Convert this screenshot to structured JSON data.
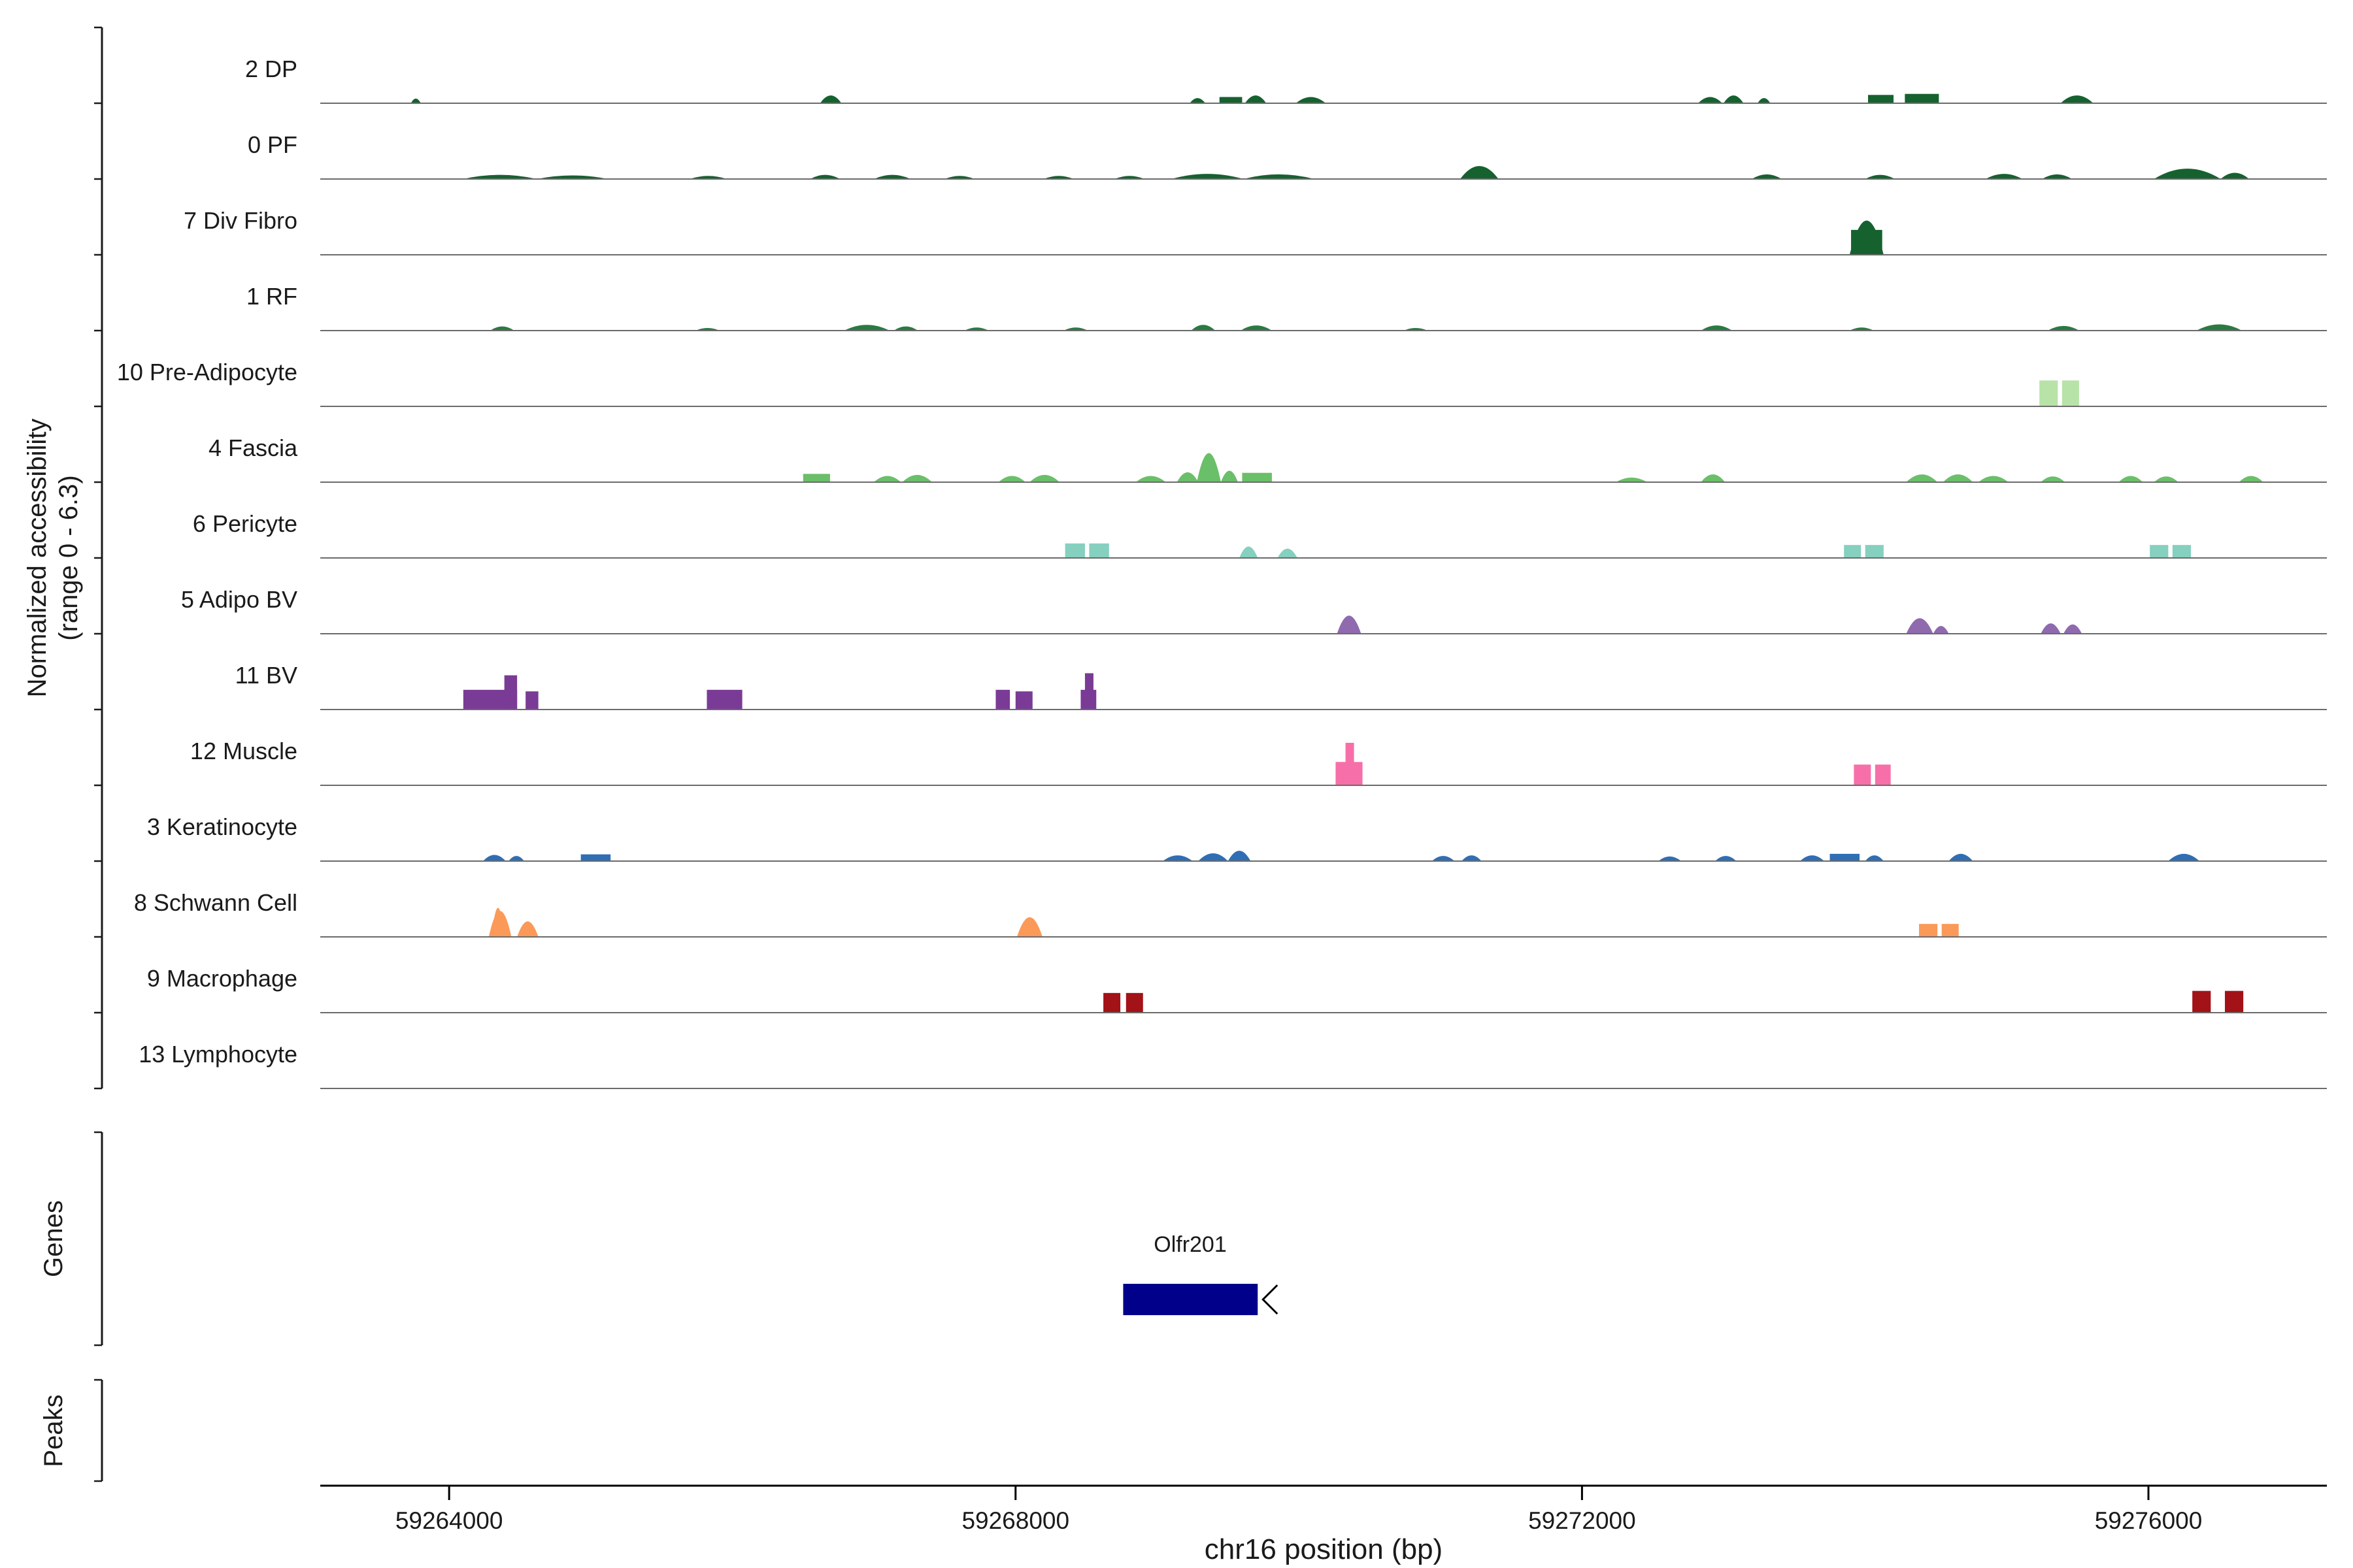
{
  "figure": {
    "ylabel_line1": "Normalized accessibility",
    "ylabel_line2": "(range 0 - 6.3)",
    "xlabel": "chr16 position (bp)",
    "genes_label": "Genes",
    "peaks_label": "Peaks"
  },
  "chart_data": {
    "type": "area",
    "title": "",
    "xlabel": "chr16 position (bp)",
    "ylabel": "Normalized accessibility (range 0 - 6.3)",
    "x_domain": [
      59263090,
      59277260
    ],
    "x_ticks": [
      {
        "value": 59264000,
        "label": "59264000"
      },
      {
        "value": 59268000,
        "label": "59268000"
      },
      {
        "value": 59272000,
        "label": "59272000"
      },
      {
        "value": 59276000,
        "label": "59276000"
      }
    ],
    "track_y_max": 6.3,
    "track_line_color": "#6b6b6b",
    "gene": {
      "name": "Olfr201",
      "start": 59268760,
      "end": 59269710,
      "strand": "-",
      "color": "#00008b"
    },
    "peaks": [],
    "tracks": [
      {
        "label": "2 DP",
        "color": "#15622f",
        "bumps": [
          [
            59263730,
            59263800,
            0.45,
            "t"
          ],
          [
            59266620,
            59266770,
            0.75,
            "t"
          ],
          [
            59269230,
            59269340,
            0.5,
            "t"
          ],
          [
            59269440,
            59269600,
            0.6,
            "r"
          ],
          [
            59269620,
            59269770,
            0.75,
            "t"
          ],
          [
            59269980,
            59270190,
            0.6,
            "t"
          ],
          [
            59272820,
            59272990,
            0.6,
            "t"
          ],
          [
            59273000,
            59273140,
            0.75,
            "t"
          ],
          [
            59273240,
            59273330,
            0.5,
            "t"
          ],
          [
            59274020,
            59274200,
            0.8,
            "r"
          ],
          [
            59274280,
            59274520,
            0.9,
            "r"
          ],
          [
            59275380,
            59275610,
            0.75,
            "t"
          ]
        ]
      },
      {
        "label": "0 PF",
        "color": "#15622f",
        "bumps": [
          [
            59264100,
            59264620,
            0.4,
            "t"
          ],
          [
            59264620,
            59265120,
            0.35,
            "t"
          ],
          [
            59265700,
            59265960,
            0.3,
            "t"
          ],
          [
            59266550,
            59266760,
            0.4,
            "t"
          ],
          [
            59267000,
            59267260,
            0.4,
            "t"
          ],
          [
            59267500,
            59267710,
            0.3,
            "t"
          ],
          [
            59268200,
            59268410,
            0.3,
            "t"
          ],
          [
            59268700,
            59268910,
            0.3,
            "t"
          ],
          [
            59269100,
            59269610,
            0.5,
            "t"
          ],
          [
            59269610,
            59270110,
            0.45,
            "t"
          ],
          [
            59271140,
            59271410,
            1.25,
            "t"
          ],
          [
            59273200,
            59273410,
            0.45,
            "t"
          ],
          [
            59274000,
            59274210,
            0.4,
            "t"
          ],
          [
            59274850,
            59275110,
            0.5,
            "t"
          ],
          [
            59275250,
            59275460,
            0.45,
            "t"
          ],
          [
            59276040,
            59276510,
            1.0,
            "t"
          ],
          [
            59276510,
            59276710,
            0.6,
            "t"
          ]
        ]
      },
      {
        "label": "7 Div Fibro",
        "color": "#15622f",
        "bumps": [
          [
            59273900,
            59274120,
            2.4,
            "r"
          ],
          [
            59273890,
            59274130,
            3.3,
            "t"
          ]
        ]
      },
      {
        "label": "1 RF",
        "color": "#2a7a42",
        "bumps": [
          [
            59264290,
            59264460,
            0.4,
            "t"
          ],
          [
            59265740,
            59265910,
            0.25,
            "t"
          ],
          [
            59266790,
            59267110,
            0.55,
            "t"
          ],
          [
            59267140,
            59267310,
            0.4,
            "t"
          ],
          [
            59267640,
            59267810,
            0.3,
            "t"
          ],
          [
            59268340,
            59268510,
            0.3,
            "t"
          ],
          [
            59269240,
            59269410,
            0.55,
            "t"
          ],
          [
            59269590,
            59269810,
            0.5,
            "t"
          ],
          [
            59270740,
            59270910,
            0.25,
            "t"
          ],
          [
            59272840,
            59273060,
            0.5,
            "t"
          ],
          [
            59273890,
            59274060,
            0.3,
            "t"
          ],
          [
            59275290,
            59275510,
            0.45,
            "t"
          ],
          [
            59276340,
            59276660,
            0.6,
            "t"
          ]
        ]
      },
      {
        "label": "10 Pre-Adipocyte",
        "color": "#b8e3a8",
        "bumps": [
          [
            59275230,
            59275360,
            2.5,
            "r"
          ],
          [
            59275390,
            59275510,
            2.5,
            "r"
          ]
        ]
      },
      {
        "label": "4 Fascia",
        "color": "#6abf69",
        "bumps": [
          [
            59266500,
            59266690,
            0.8,
            "r"
          ],
          [
            59267000,
            59267190,
            0.6,
            "t"
          ],
          [
            59267200,
            59267410,
            0.7,
            "t"
          ],
          [
            59267880,
            59268070,
            0.6,
            "t"
          ],
          [
            59268100,
            59268310,
            0.7,
            "t"
          ],
          [
            59268850,
            59269060,
            0.6,
            "t"
          ],
          [
            59269140,
            59269290,
            0.95,
            "t"
          ],
          [
            59269280,
            59269450,
            2.8,
            "t"
          ],
          [
            59269450,
            59269570,
            1.1,
            "t"
          ],
          [
            59269600,
            59269810,
            0.9,
            "r"
          ],
          [
            59272240,
            59272460,
            0.45,
            "t"
          ],
          [
            59272840,
            59273010,
            0.75,
            "t"
          ],
          [
            59274290,
            59274510,
            0.75,
            "t"
          ],
          [
            59274550,
            59274760,
            0.75,
            "t"
          ],
          [
            59274800,
            59275010,
            0.6,
            "t"
          ],
          [
            59275240,
            59275410,
            0.55,
            "t"
          ],
          [
            59275790,
            59275960,
            0.6,
            "t"
          ],
          [
            59276040,
            59276210,
            0.55,
            "t"
          ],
          [
            59276640,
            59276810,
            0.6,
            "t"
          ]
        ]
      },
      {
        "label": "6 Pericyte",
        "color": "#85d0bf",
        "bumps": [
          [
            59268350,
            59268490,
            1.4,
            "r"
          ],
          [
            59268520,
            59268660,
            1.4,
            "r"
          ],
          [
            59269580,
            59269710,
            1.1,
            "t"
          ],
          [
            59269850,
            59269990,
            0.9,
            "t"
          ],
          [
            59273850,
            59273970,
            1.25,
            "r"
          ],
          [
            59274000,
            59274130,
            1.25,
            "r"
          ],
          [
            59276010,
            59276140,
            1.25,
            "r"
          ],
          [
            59276170,
            59276300,
            1.25,
            "r"
          ]
        ]
      },
      {
        "label": "5 Adipo BV",
        "color": "#8f6aae",
        "bumps": [
          [
            59270270,
            59270440,
            1.75,
            "t"
          ],
          [
            59274290,
            59274480,
            1.5,
            "t"
          ],
          [
            59274480,
            59274590,
            0.75,
            "t"
          ],
          [
            59275240,
            59275380,
            1.0,
            "t"
          ],
          [
            59275400,
            59275530,
            0.9,
            "t"
          ]
        ]
      },
      {
        "label": "11 BV",
        "color": "#7a3b96",
        "bumps": [
          [
            59264100,
            59264480,
            1.9,
            "r"
          ],
          [
            59264390,
            59264480,
            3.3,
            "r"
          ],
          [
            59264540,
            59264630,
            1.75,
            "r"
          ],
          [
            59265820,
            59266070,
            1.9,
            "r"
          ],
          [
            59267860,
            59267960,
            1.9,
            "r"
          ],
          [
            59268000,
            59268120,
            1.75,
            "r"
          ],
          [
            59268460,
            59268570,
            1.9,
            "r"
          ],
          [
            59268490,
            59268550,
            3.5,
            "r"
          ]
        ]
      },
      {
        "label": "12 Muscle",
        "color": "#f76fa8",
        "bumps": [
          [
            59270260,
            59270450,
            2.25,
            "r"
          ],
          [
            59270330,
            59270390,
            4.1,
            "r"
          ],
          [
            59273920,
            59274040,
            2.0,
            "r"
          ],
          [
            59274070,
            59274180,
            2.0,
            "r"
          ]
        ]
      },
      {
        "label": "3 Keratinocyte",
        "color": "#2f6eb4",
        "bumps": [
          [
            59264240,
            59264400,
            0.6,
            "t"
          ],
          [
            59264420,
            59264530,
            0.5,
            "t"
          ],
          [
            59264930,
            59265140,
            0.65,
            "r"
          ],
          [
            59269040,
            59269250,
            0.55,
            "t"
          ],
          [
            59269290,
            59269500,
            0.75,
            "t"
          ],
          [
            59269500,
            59269660,
            1.0,
            "t"
          ],
          [
            59270940,
            59271100,
            0.5,
            "t"
          ],
          [
            59271150,
            59271290,
            0.55,
            "t"
          ],
          [
            59272540,
            59272700,
            0.45,
            "t"
          ],
          [
            59272940,
            59273090,
            0.5,
            "t"
          ],
          [
            59273540,
            59273710,
            0.55,
            "t"
          ],
          [
            59273750,
            59273960,
            0.7,
            "r"
          ],
          [
            59274000,
            59274130,
            0.55,
            "t"
          ],
          [
            59274590,
            59274760,
            0.7,
            "t"
          ],
          [
            59276140,
            59276360,
            0.7,
            "t"
          ]
        ]
      },
      {
        "label": "8 Schwann Cell",
        "color": "#fb9a58",
        "bumps": [
          [
            59264280,
            59264440,
            2.5,
            "t"
          ],
          [
            59264300,
            59264390,
            2.8,
            "t"
          ],
          [
            59264480,
            59264630,
            1.5,
            "t"
          ],
          [
            59268010,
            59268190,
            1.9,
            "t"
          ],
          [
            59274380,
            59274510,
            1.25,
            "r"
          ],
          [
            59274540,
            59274660,
            1.25,
            "r"
          ]
        ]
      },
      {
        "label": "9 Macrophage",
        "color": "#a31216",
        "bumps": [
          [
            59268620,
            59268740,
            1.9,
            "r"
          ],
          [
            59268780,
            59268900,
            1.9,
            "r"
          ],
          [
            59276310,
            59276440,
            2.1,
            "r"
          ],
          [
            59276540,
            59276670,
            2.1,
            "r"
          ]
        ]
      },
      {
        "label": "13 Lymphocyte",
        "color": "#c8b45a",
        "bumps": []
      }
    ]
  }
}
